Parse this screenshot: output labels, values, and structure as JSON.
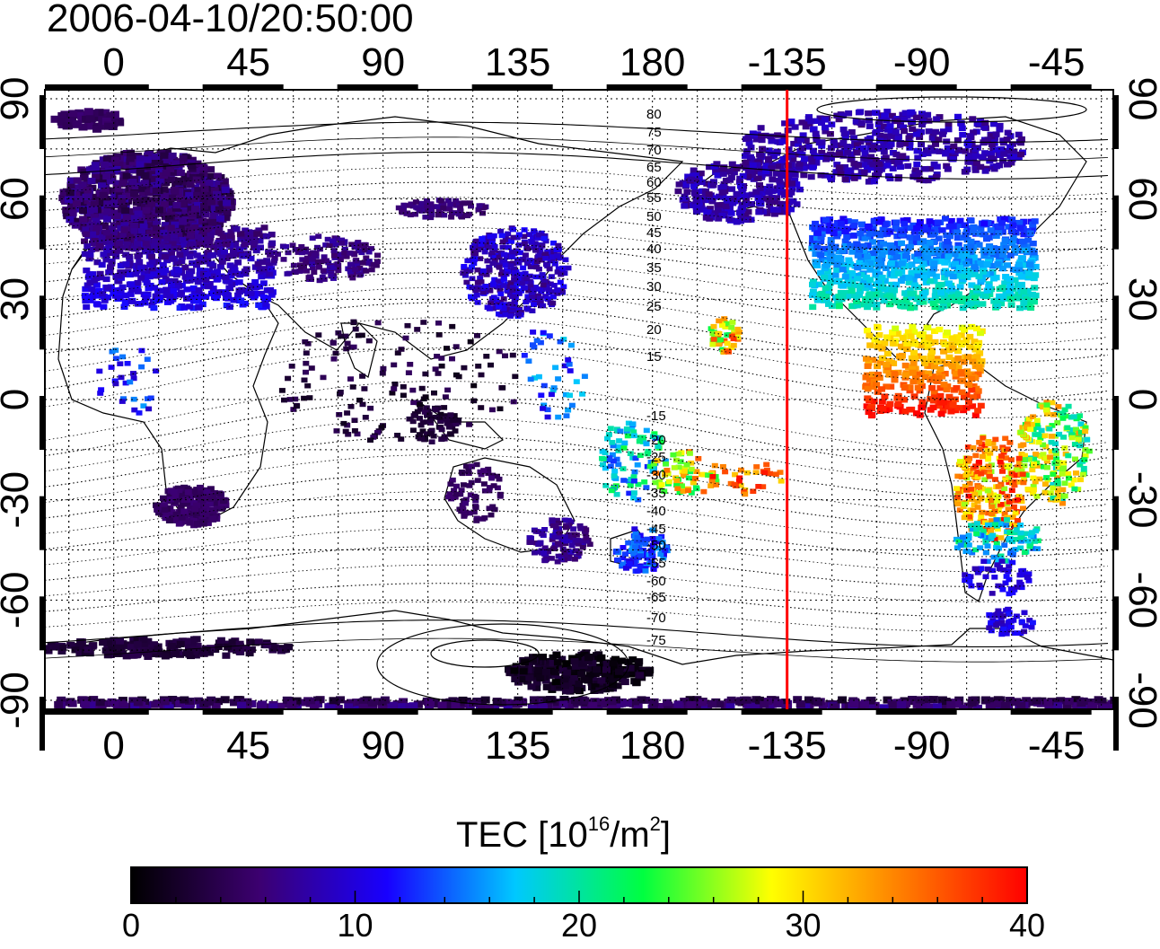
{
  "timestamp": "2006-04-10/20:50:00",
  "map": {
    "top_lon_labels": [
      "0",
      "45",
      "90",
      "135",
      "180",
      "-135",
      "-90",
      "-45"
    ],
    "bottom_lon_labels": [
      "0",
      "45",
      "90",
      "135",
      "180",
      "-135",
      "-90",
      "-45"
    ],
    "left_lat_labels": [
      "90",
      "60",
      "30",
      "0",
      "-30",
      "-60",
      "-90"
    ],
    "right_lat_labels": [
      "90",
      "60",
      "30",
      "0",
      "-30",
      "-60",
      "-90"
    ],
    "contour_labels": [
      "80",
      "75",
      "70",
      "65",
      "60",
      "55",
      "50",
      "45",
      "40",
      "35",
      "30",
      "25",
      "20",
      "15",
      "-15",
      "-20",
      "-25",
      "-30",
      "-35",
      "-40",
      "-45",
      "-50",
      "-55",
      "-60",
      "-65",
      "-70",
      "-75"
    ],
    "marker_line_color": "#ff0000",
    "marker_line_lon": -135
  },
  "colorbar": {
    "title_prefix": "TEC  [10",
    "title_exp1": "16",
    "title_mid": "/m",
    "title_exp2": "2",
    "title_suffix": "]",
    "min": 0,
    "max": 40,
    "tick_labels": [
      "0",
      "10",
      "20",
      "30",
      "40"
    ],
    "colors": [
      "#000000",
      "#3c0070",
      "#1800ff",
      "#00c8ff",
      "#00ff40",
      "#ffff00",
      "#ff8000",
      "#ff0000"
    ]
  }
}
